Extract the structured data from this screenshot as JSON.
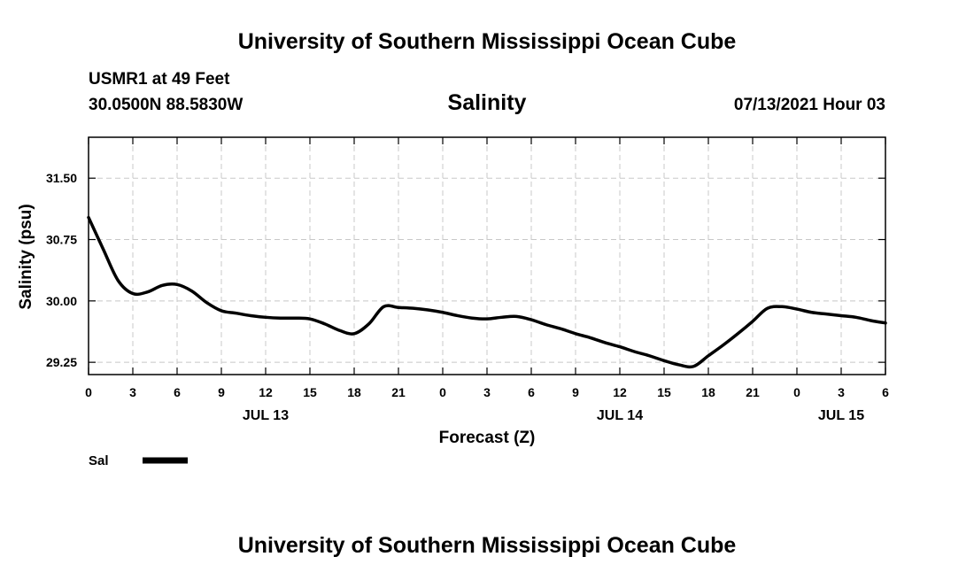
{
  "header": {
    "title": "University of Southern Mississippi Ocean Cube",
    "station": "USMR1 at 49 Feet",
    "coords": "30.0500N  88.5830W",
    "datetime": "07/13/2021 Hour 03"
  },
  "footer": {
    "title": "University of Southern Mississippi Ocean Cube"
  },
  "chart_data": {
    "type": "line",
    "title": "Salinity",
    "xlabel": "Forecast (Z)",
    "ylabel": "Salinity (psu)",
    "xlim": [
      0,
      54
    ],
    "ylim": [
      29.1,
      32.0
    ],
    "yticks": [
      29.25,
      30.0,
      30.75,
      31.5
    ],
    "ytick_labels": [
      "29.25",
      "30.00",
      "30.75",
      "31.50"
    ],
    "xticks": [
      0,
      3,
      6,
      9,
      12,
      15,
      18,
      21,
      24,
      27,
      30,
      33,
      36,
      39,
      42,
      45,
      48,
      51,
      54
    ],
    "xtick_labels": [
      "0",
      "3",
      "6",
      "9",
      "12",
      "15",
      "18",
      "21",
      "0",
      "3",
      "6",
      "9",
      "12",
      "15",
      "18",
      "21",
      "0",
      "3",
      "6"
    ],
    "date_labels": [
      {
        "label": "JUL 13",
        "x": 12
      },
      {
        "label": "JUL 14",
        "x": 36
      },
      {
        "label": "JUL 15",
        "x": 51
      }
    ],
    "grid": true,
    "legend": "bottom-left",
    "series": [
      {
        "name": "Sal",
        "x": [
          0,
          1,
          2,
          3,
          4,
          5,
          6,
          7,
          8,
          9,
          10,
          11,
          12,
          13,
          14,
          15,
          16,
          17,
          18,
          19,
          20,
          21,
          22,
          23,
          24,
          25,
          26,
          27,
          28,
          29,
          30,
          31,
          32,
          33,
          34,
          35,
          36,
          37,
          38,
          39,
          40,
          41,
          42,
          43,
          44,
          45,
          46,
          47,
          48,
          49,
          50,
          51,
          52,
          53,
          54
        ],
        "values": [
          31.02,
          30.63,
          30.25,
          30.09,
          30.11,
          30.19,
          30.2,
          30.12,
          29.98,
          29.88,
          29.85,
          29.82,
          29.8,
          29.79,
          29.79,
          29.78,
          29.72,
          29.64,
          29.6,
          29.72,
          29.93,
          29.92,
          29.91,
          29.89,
          29.86,
          29.82,
          29.79,
          29.78,
          29.8,
          29.81,
          29.77,
          29.71,
          29.66,
          29.6,
          29.55,
          29.49,
          29.44,
          29.38,
          29.33,
          29.27,
          29.22,
          29.2,
          29.33,
          29.46,
          29.6,
          29.75,
          29.91,
          29.93,
          29.9,
          29.86,
          29.84,
          29.82,
          29.8,
          29.76,
          29.73
        ]
      }
    ]
  }
}
